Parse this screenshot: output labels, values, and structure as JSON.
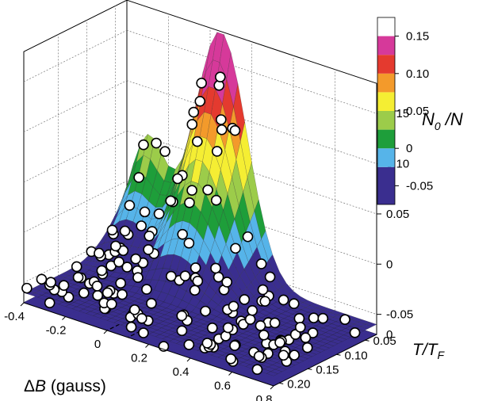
{
  "chart_data": {
    "type": "surface3d",
    "x_axis": {
      "label": "ΔB (gauss)",
      "label_prefix": "Δ",
      "label_var": "B",
      "label_unit": " (gauss)",
      "ticks": [
        "-0.4",
        "-0.2",
        "0",
        "0.2",
        "0.4",
        "0.6",
        "0.8"
      ],
      "range": [
        -0.4,
        0.8
      ]
    },
    "y_axis": {
      "label": "T/T_F",
      "ticks": [
        "0.05",
        "0.10",
        "0.15",
        "0.20"
      ],
      "range": [
        0.03,
        0.21
      ]
    },
    "z_axis": {
      "ticks": [
        "-0.05",
        "0",
        "0.05",
        "0.10",
        "0.15"
      ],
      "floor_tick": "0",
      "range": [
        -0.07,
        0.18
      ]
    },
    "colorbar": {
      "label": "N_0 /N",
      "label_main": "N",
      "label_sub": "0",
      "label_tail": " /N",
      "ticks": [
        "-0.05",
        "0",
        "0.05",
        "0.10",
        "0.15"
      ],
      "levels": [
        -0.075,
        -0.025,
        0.0,
        0.025,
        0.05,
        0.075,
        0.1,
        0.125,
        0.15,
        0.175
      ],
      "colors": [
        "#3a2e8f",
        "#56b4e9",
        "#1e9e3a",
        "#9ccc4a",
        "#f5ee33",
        "#f39a2b",
        "#e43a2f",
        "#d6399a"
      ]
    },
    "surface_peak": {
      "x": 0.05,
      "t": 0.04,
      "value": 0.17
    },
    "grid": true,
    "projection_on_floor": true,
    "data_points": "open circles scattered over surface"
  }
}
